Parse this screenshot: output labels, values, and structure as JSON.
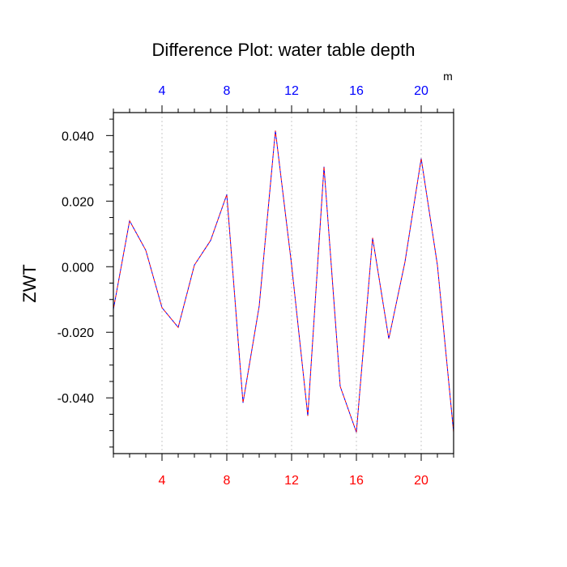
{
  "chart_data": {
    "type": "line",
    "title": "Difference Plot: water table depth",
    "ylabel": "ZWT",
    "top_axis_unit": "m",
    "xlim": [
      1,
      22
    ],
    "ylim": [
      -0.057,
      0.047
    ],
    "x_ticks": [
      4,
      8,
      12,
      16,
      20
    ],
    "x_tick_labels": [
      "4",
      "8",
      "12",
      "16",
      "20"
    ],
    "y_ticks": [
      0.04,
      0.02,
      0.0,
      -0.02,
      -0.04
    ],
    "y_tick_labels": [
      "0.040",
      "0.020",
      "0.000",
      "-0.020",
      "-0.040"
    ],
    "grid": "vertical dotted at x ticks",
    "colors": {
      "bottom_axis_labels": "#ff0000",
      "top_axis_labels": "#0000ff",
      "series_a": "#0000ff",
      "series_b": "#ff0000",
      "grid": "#c8c8c8"
    },
    "series": [
      {
        "x": [
          1,
          2,
          3,
          4,
          5,
          6,
          7,
          8,
          9,
          10,
          11,
          12,
          13,
          14,
          15,
          16,
          17,
          18,
          19,
          20,
          21,
          22
        ],
        "values": [
          -0.013,
          0.014,
          0.005,
          -0.0125,
          -0.0185,
          0.0005,
          0.008,
          0.022,
          -0.0415,
          -0.012,
          0.0415,
          0.0005,
          -0.0455,
          0.0305,
          -0.0365,
          -0.0505,
          0.0088,
          -0.022,
          0.0015,
          0.033,
          0.0005,
          -0.0505
        ],
        "line_style": "dashed",
        "color": "#0000ff"
      },
      {
        "x": [
          1,
          2,
          3,
          4,
          5,
          6,
          7,
          8,
          9,
          10,
          11,
          12,
          13,
          14,
          15,
          16,
          17,
          18,
          19,
          20,
          21,
          22
        ],
        "values": [
          -0.013,
          0.014,
          0.005,
          -0.0125,
          -0.0185,
          0.0005,
          0.008,
          0.022,
          -0.0415,
          -0.012,
          0.0415,
          0.0005,
          -0.0455,
          0.0305,
          -0.0365,
          -0.0505,
          0.0088,
          -0.022,
          0.0015,
          0.033,
          0.0005,
          -0.0505
        ],
        "line_style": "dashed-offset",
        "color": "#ff0000"
      }
    ]
  }
}
